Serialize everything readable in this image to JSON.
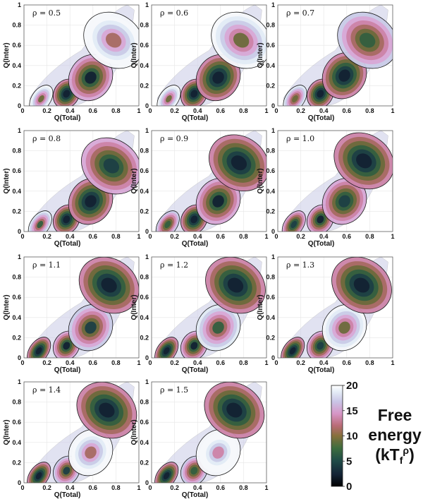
{
  "chart_data": {
    "type": "heatmap",
    "description_colors": {
      "scale": [
        "#0b0b12",
        "#1b2a3a",
        "#1f4a45",
        "#3a6a3c",
        "#7d6a3a",
        "#b86a74",
        "#d79ac4",
        "#cfc2e4",
        "#e8eef6",
        "#ffffff"
      ]
    },
    "xlabel": "Q(Total)",
    "ylabel": "Q(Inter)",
    "xlim": [
      0,
      1
    ],
    "ylim": [
      0,
      1
    ],
    "x_ticks": [
      "0",
      "0.2",
      "0.4",
      "0.6",
      "0.8",
      "1"
    ],
    "y_ticks": [
      "0",
      "0.2",
      "0.4",
      "0.6",
      "0.8",
      "1"
    ],
    "panels": [
      {
        "rho_label": "ρ = 0.5",
        "wells": [
          {
            "x": 0.15,
            "y": 0.07,
            "F": 8
          },
          {
            "x": 0.37,
            "y": 0.12,
            "F": 1
          },
          {
            "x": 0.58,
            "y": 0.28,
            "F": 2
          },
          {
            "x": 0.78,
            "y": 0.65,
            "F": 10
          }
        ]
      },
      {
        "rho_label": "ρ = 0.6",
        "wells": [
          {
            "x": 0.15,
            "y": 0.07,
            "F": 8
          },
          {
            "x": 0.37,
            "y": 0.12,
            "F": 1
          },
          {
            "x": 0.58,
            "y": 0.28,
            "F": 1
          },
          {
            "x": 0.78,
            "y": 0.65,
            "F": 8
          }
        ]
      },
      {
        "rho_label": "ρ = 0.7",
        "wells": [
          {
            "x": 0.15,
            "y": 0.07,
            "F": 7
          },
          {
            "x": 0.37,
            "y": 0.12,
            "F": 1
          },
          {
            "x": 0.58,
            "y": 0.3,
            "F": 1
          },
          {
            "x": 0.78,
            "y": 0.65,
            "F": 5
          }
        ]
      },
      {
        "rho_label": "ρ = 0.8",
        "wells": [
          {
            "x": 0.14,
            "y": 0.07,
            "F": 6
          },
          {
            "x": 0.37,
            "y": 0.12,
            "F": 1
          },
          {
            "x": 0.58,
            "y": 0.3,
            "F": 1
          },
          {
            "x": 0.76,
            "y": 0.65,
            "F": 3
          }
        ]
      },
      {
        "rho_label": "ρ = 0.9",
        "wells": [
          {
            "x": 0.14,
            "y": 0.07,
            "F": 5
          },
          {
            "x": 0.37,
            "y": 0.12,
            "F": 1
          },
          {
            "x": 0.58,
            "y": 0.3,
            "F": 2
          },
          {
            "x": 0.76,
            "y": 0.68,
            "F": 1
          }
        ]
      },
      {
        "rho_label": "ρ = 1.0",
        "wells": [
          {
            "x": 0.14,
            "y": 0.07,
            "F": 3
          },
          {
            "x": 0.37,
            "y": 0.12,
            "F": 2
          },
          {
            "x": 0.58,
            "y": 0.3,
            "F": 3
          },
          {
            "x": 0.75,
            "y": 0.7,
            "F": 1
          }
        ]
      },
      {
        "rho_label": "ρ = 1.1",
        "wells": [
          {
            "x": 0.13,
            "y": 0.07,
            "F": 1
          },
          {
            "x": 0.37,
            "y": 0.12,
            "F": 2
          },
          {
            "x": 0.58,
            "y": 0.3,
            "F": 4
          },
          {
            "x": 0.74,
            "y": 0.72,
            "F": 1
          }
        ]
      },
      {
        "rho_label": "ρ = 1.2",
        "wells": [
          {
            "x": 0.13,
            "y": 0.07,
            "F": 1
          },
          {
            "x": 0.37,
            "y": 0.12,
            "F": 2
          },
          {
            "x": 0.58,
            "y": 0.3,
            "F": 6
          },
          {
            "x": 0.73,
            "y": 0.72,
            "F": 1
          }
        ]
      },
      {
        "rho_label": "ρ = 1.3",
        "wells": [
          {
            "x": 0.13,
            "y": 0.07,
            "F": 1
          },
          {
            "x": 0.37,
            "y": 0.12,
            "F": 3
          },
          {
            "x": 0.58,
            "y": 0.3,
            "F": 8
          },
          {
            "x": 0.73,
            "y": 0.72,
            "F": 1
          }
        ]
      },
      {
        "rho_label": "ρ = 1.4",
        "wells": [
          {
            "x": 0.13,
            "y": 0.07,
            "F": 1
          },
          {
            "x": 0.37,
            "y": 0.12,
            "F": 4
          },
          {
            "x": 0.58,
            "y": 0.3,
            "F": 10
          },
          {
            "x": 0.72,
            "y": 0.72,
            "F": 1
          }
        ]
      },
      {
        "rho_label": "ρ = 1.5",
        "wells": [
          {
            "x": 0.13,
            "y": 0.07,
            "F": 1
          },
          {
            "x": 0.37,
            "y": 0.12,
            "F": 5
          },
          {
            "x": 0.58,
            "y": 0.3,
            "F": 12
          },
          {
            "x": 0.72,
            "y": 0.72,
            "F": 1
          }
        ]
      }
    ],
    "colorbar": {
      "ticks": [
        "0",
        "5",
        "10",
        "15",
        "20"
      ],
      "range": [
        0,
        20
      ],
      "title_lines": [
        "Free",
        "energy"
      ],
      "unit_main": "(kT",
      "unit_sub": "f",
      "unit_sup": "ρ",
      "unit_close": ")"
    }
  }
}
